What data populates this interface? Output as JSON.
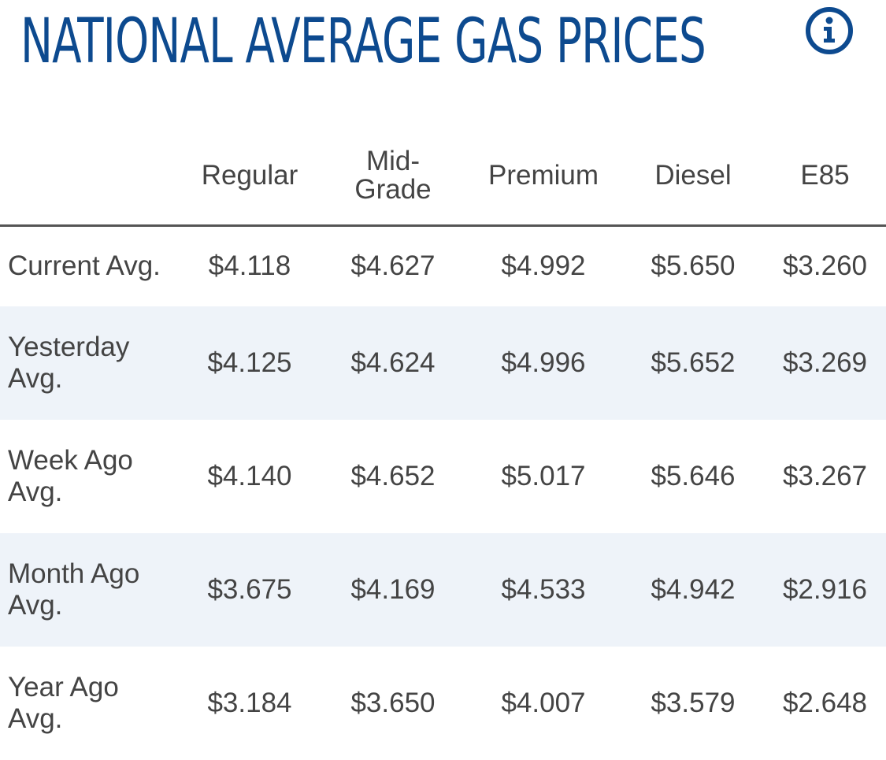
{
  "header": {
    "title": "NATIONAL AVERAGE GAS PRICES",
    "info_icon": "info-circle-icon",
    "title_color": "#0d4a8f"
  },
  "table": {
    "columns": [
      "",
      "Regular",
      "Mid-\nGrade",
      "Premium",
      "Diesel",
      "E85"
    ],
    "rows": [
      {
        "label": "Current Avg.",
        "values": [
          "$4.118",
          "$4.627",
          "$4.992",
          "$5.650",
          "$3.260"
        ]
      },
      {
        "label": "Yesterday\nAvg.",
        "values": [
          "$4.125",
          "$4.624",
          "$4.996",
          "$5.652",
          "$3.269"
        ]
      },
      {
        "label": "Week Ago\nAvg.",
        "values": [
          "$4.140",
          "$4.652",
          "$5.017",
          "$5.646",
          "$3.267"
        ]
      },
      {
        "label": "Month Ago\nAvg.",
        "values": [
          "$3.675",
          "$4.169",
          "$4.533",
          "$4.942",
          "$2.916"
        ]
      },
      {
        "label": "Year Ago\nAvg.",
        "values": [
          "$3.184",
          "$3.650",
          "$4.007",
          "$3.579",
          "$2.648"
        ]
      }
    ],
    "stripe_color": "#eef3f9"
  }
}
